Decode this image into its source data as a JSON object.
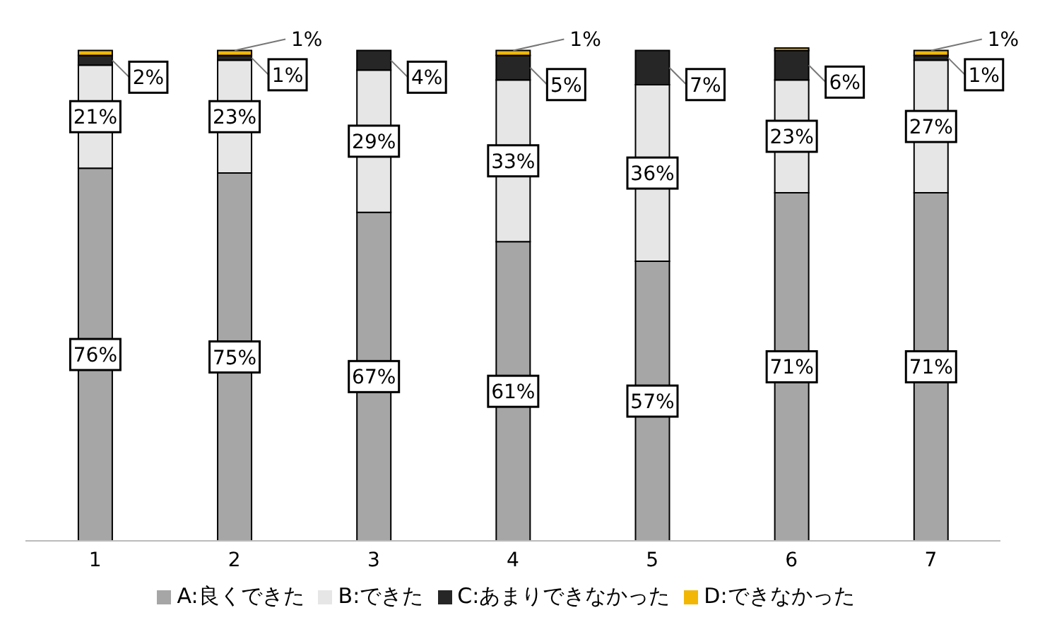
{
  "chart_data": {
    "type": "bar",
    "stacked": true,
    "categories": [
      "1",
      "2",
      "3",
      "4",
      "5",
      "6",
      "7"
    ],
    "series": [
      {
        "name": "A:良くできた",
        "color": "#a6a6a6",
        "values": [
          76,
          75,
          67,
          61,
          57,
          71,
          71
        ],
        "value_labels": [
          "76%",
          "75%",
          "67%",
          "61%",
          "57%",
          "71%",
          "71%"
        ]
      },
      {
        "name": "B:できた",
        "color": "#e6e6e6",
        "values": [
          21,
          23,
          29,
          33,
          36,
          23,
          27
        ],
        "value_labels": [
          "21%",
          "23%",
          "29%",
          "33%",
          "36%",
          "23%",
          "27%"
        ]
      },
      {
        "name": "C:あまりできなかった",
        "color": "#262626",
        "values": [
          2,
          1,
          4,
          5,
          7,
          6,
          1
        ],
        "value_labels": [
          "2%",
          "1%",
          "4%",
          "5%",
          "7%",
          "6%",
          "1%"
        ]
      },
      {
        "name": "D:できなかった",
        "color": "#f2b705",
        "values": [
          1,
          1,
          0,
          1,
          0,
          0.5,
          1
        ],
        "value_labels": [
          null,
          "1%",
          null,
          "1%",
          null,
          null,
          "1%"
        ]
      }
    ],
    "legend": "bottom",
    "grid": false
  }
}
